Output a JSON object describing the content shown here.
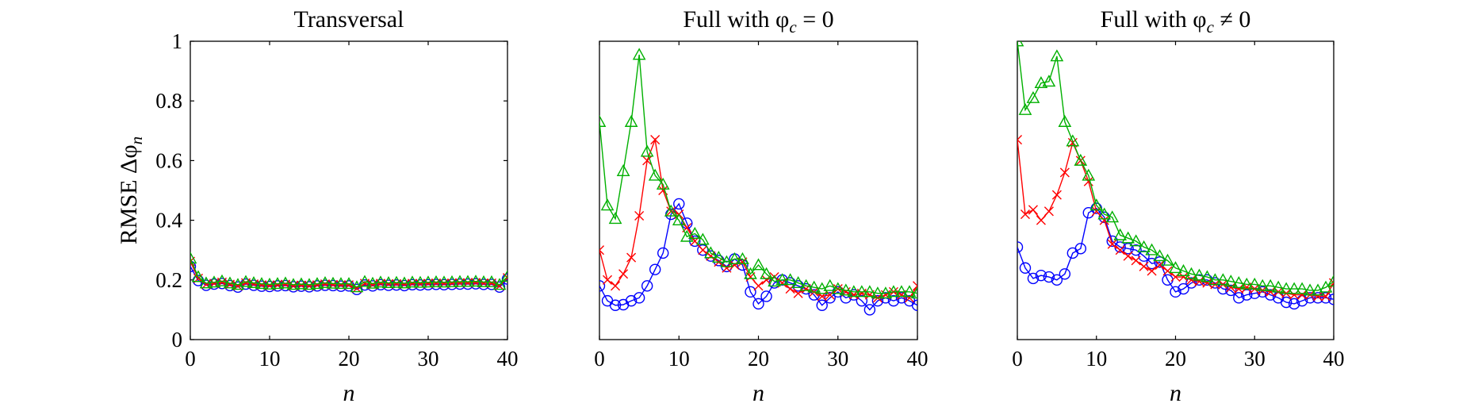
{
  "colors": {
    "blue": "#0000ff",
    "red": "#ff0000",
    "green": "#00b000"
  },
  "chart_data": [
    {
      "type": "line",
      "title": "Transversal",
      "xlabel": "n",
      "ylabel": "RMSE Δφ_n",
      "xlim": [
        0,
        40
      ],
      "ylim": [
        0,
        1
      ],
      "xticks": [
        "0",
        "10",
        "20",
        "30",
        "40"
      ],
      "yticks": [
        "0",
        "0.2",
        "0.4",
        "0.6",
        "0.8",
        "1"
      ],
      "grid": false,
      "x": [
        0,
        1,
        2,
        3,
        4,
        5,
        6,
        7,
        8,
        9,
        10,
        11,
        12,
        13,
        14,
        15,
        16,
        17,
        18,
        19,
        20,
        21,
        22,
        23,
        24,
        25,
        26,
        27,
        28,
        29,
        30,
        31,
        32,
        33,
        34,
        35,
        36,
        37,
        38,
        39,
        40
      ],
      "series": [
        {
          "marker": "circle",
          "color": "blue",
          "values": [
            0.245,
            0.198,
            0.182,
            0.186,
            0.188,
            0.181,
            0.176,
            0.186,
            0.182,
            0.179,
            0.178,
            0.18,
            0.181,
            0.177,
            0.179,
            0.177,
            0.18,
            0.182,
            0.181,
            0.179,
            0.18,
            0.168,
            0.183,
            0.18,
            0.184,
            0.182,
            0.183,
            0.181,
            0.184,
            0.183,
            0.184,
            0.185,
            0.184,
            0.185,
            0.186,
            0.186,
            0.187,
            0.185,
            0.185,
            0.176,
            0.203
          ]
        },
        {
          "marker": "x",
          "color": "red",
          "values": [
            0.262,
            0.205,
            0.185,
            0.188,
            0.192,
            0.185,
            0.18,
            0.19,
            0.186,
            0.183,
            0.181,
            0.183,
            0.185,
            0.18,
            0.182,
            0.18,
            0.183,
            0.186,
            0.184,
            0.183,
            0.183,
            0.172,
            0.188,
            0.184,
            0.188,
            0.186,
            0.187,
            0.185,
            0.188,
            0.187,
            0.188,
            0.189,
            0.188,
            0.189,
            0.19,
            0.19,
            0.191,
            0.189,
            0.189,
            0.18,
            0.207
          ]
        },
        {
          "marker": "triangle",
          "color": "green",
          "values": [
            0.272,
            0.21,
            0.189,
            0.192,
            0.196,
            0.189,
            0.184,
            0.194,
            0.19,
            0.187,
            0.185,
            0.187,
            0.189,
            0.184,
            0.186,
            0.184,
            0.187,
            0.19,
            0.188,
            0.187,
            0.187,
            0.176,
            0.194,
            0.188,
            0.192,
            0.19,
            0.191,
            0.189,
            0.192,
            0.191,
            0.192,
            0.193,
            0.192,
            0.193,
            0.194,
            0.194,
            0.195,
            0.193,
            0.193,
            0.184,
            0.211
          ]
        }
      ]
    },
    {
      "type": "line",
      "title": "Full with φ_c = 0",
      "xlabel": "n",
      "ylabel": "",
      "xlim": [
        0,
        40
      ],
      "ylim": [
        0,
        1
      ],
      "xticks": [
        "0",
        "10",
        "20",
        "30",
        "40"
      ],
      "yticks": [],
      "grid": false,
      "x": [
        0,
        1,
        2,
        3,
        4,
        5,
        6,
        7,
        8,
        9,
        10,
        11,
        12,
        13,
        14,
        15,
        16,
        17,
        18,
        19,
        20,
        21,
        22,
        23,
        24,
        25,
        26,
        27,
        28,
        29,
        30,
        31,
        32,
        33,
        34,
        35,
        36,
        37,
        38,
        39,
        40
      ],
      "series": [
        {
          "marker": "circle",
          "color": "blue",
          "values": [
            0.18,
            0.13,
            0.115,
            0.117,
            0.13,
            0.14,
            0.18,
            0.235,
            0.29,
            0.42,
            0.455,
            0.39,
            0.33,
            0.3,
            0.28,
            0.265,
            0.245,
            0.27,
            0.25,
            0.16,
            0.12,
            0.145,
            0.19,
            0.2,
            0.19,
            0.18,
            0.17,
            0.15,
            0.115,
            0.14,
            0.16,
            0.14,
            0.15,
            0.13,
            0.1,
            0.13,
            0.14,
            0.13,
            0.14,
            0.13,
            0.115
          ]
        },
        {
          "marker": "x",
          "color": "red",
          "values": [
            0.3,
            0.2,
            0.18,
            0.22,
            0.275,
            0.415,
            0.6,
            0.67,
            0.5,
            0.43,
            0.42,
            0.375,
            0.33,
            0.3,
            0.28,
            0.26,
            0.24,
            0.25,
            0.26,
            0.21,
            0.18,
            0.2,
            0.21,
            0.19,
            0.17,
            0.155,
            0.17,
            0.16,
            0.145,
            0.15,
            0.17,
            0.16,
            0.15,
            0.155,
            0.15,
            0.14,
            0.15,
            0.16,
            0.15,
            0.14,
            0.18
          ]
        },
        {
          "marker": "triangle",
          "color": "green",
          "values": [
            0.73,
            0.45,
            0.405,
            0.565,
            0.73,
            0.955,
            0.63,
            0.55,
            0.52,
            0.43,
            0.4,
            0.345,
            0.355,
            0.335,
            0.29,
            0.275,
            0.26,
            0.27,
            0.27,
            0.22,
            0.25,
            0.22,
            0.195,
            0.2,
            0.2,
            0.19,
            0.18,
            0.175,
            0.17,
            0.18,
            0.17,
            0.165,
            0.16,
            0.16,
            0.16,
            0.155,
            0.155,
            0.16,
            0.16,
            0.16,
            0.155
          ]
        }
      ]
    },
    {
      "type": "line",
      "title": "Full with φ_c ≠ 0",
      "xlabel": "n",
      "ylabel": "",
      "xlim": [
        0,
        40
      ],
      "ylim": [
        0,
        1
      ],
      "xticks": [
        "0",
        "10",
        "20",
        "30",
        "40"
      ],
      "yticks": [],
      "grid": false,
      "x": [
        0,
        1,
        2,
        3,
        4,
        5,
        6,
        7,
        8,
        9,
        10,
        11,
        12,
        13,
        14,
        15,
        16,
        17,
        18,
        19,
        20,
        21,
        22,
        23,
        24,
        25,
        26,
        27,
        28,
        29,
        30,
        31,
        32,
        33,
        34,
        35,
        36,
        37,
        38,
        39,
        40
      ],
      "series": [
        {
          "marker": "circle",
          "color": "blue",
          "values": [
            0.31,
            0.24,
            0.205,
            0.215,
            0.21,
            0.2,
            0.22,
            0.29,
            0.305,
            0.425,
            0.44,
            0.41,
            0.33,
            0.31,
            0.305,
            0.3,
            0.28,
            0.255,
            0.26,
            0.2,
            0.16,
            0.17,
            0.19,
            0.2,
            0.2,
            0.19,
            0.17,
            0.165,
            0.14,
            0.15,
            0.155,
            0.16,
            0.15,
            0.14,
            0.125,
            0.12,
            0.13,
            0.14,
            0.14,
            0.14,
            0.135
          ]
        },
        {
          "marker": "x",
          "color": "red",
          "values": [
            0.67,
            0.42,
            0.435,
            0.4,
            0.43,
            0.485,
            0.56,
            0.66,
            0.6,
            0.53,
            0.43,
            0.4,
            0.32,
            0.3,
            0.28,
            0.265,
            0.245,
            0.23,
            0.25,
            0.23,
            0.21,
            0.21,
            0.2,
            0.195,
            0.19,
            0.185,
            0.185,
            0.175,
            0.17,
            0.175,
            0.17,
            0.165,
            0.16,
            0.16,
            0.155,
            0.15,
            0.15,
            0.15,
            0.145,
            0.145,
            0.19
          ]
        },
        {
          "marker": "triangle",
          "color": "green",
          "values": [
            1.0,
            0.77,
            0.81,
            0.86,
            0.865,
            0.95,
            0.73,
            0.665,
            0.6,
            0.55,
            0.45,
            0.42,
            0.41,
            0.35,
            0.34,
            0.33,
            0.31,
            0.3,
            0.28,
            0.265,
            0.24,
            0.23,
            0.22,
            0.215,
            0.21,
            0.2,
            0.2,
            0.195,
            0.19,
            0.185,
            0.185,
            0.18,
            0.18,
            0.175,
            0.17,
            0.17,
            0.17,
            0.165,
            0.165,
            0.175,
            0.195
          ]
        }
      ]
    }
  ]
}
